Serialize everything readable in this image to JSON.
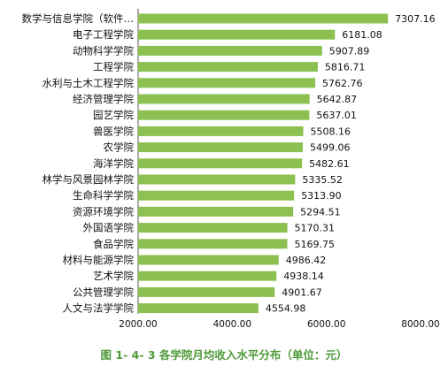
{
  "caption": "图 1- 4- 3 各学院月均收入水平分布（单位：元）",
  "colors": {
    "bar": "#8cc152",
    "text": "#111111",
    "caption": "#4f9a3a",
    "axis": "#555555"
  },
  "chart_data": {
    "type": "bar",
    "orientation": "horizontal",
    "title": "",
    "xlabel": "",
    "ylabel": "",
    "xlim": [
      2000,
      8000
    ],
    "xticks": [
      "2000.00",
      "4000.00",
      "6000.00",
      "8000.00"
    ],
    "grid": false,
    "legend": "none",
    "categories": [
      "数学与信息学院（软件…",
      "电子工程学院",
      "动物科学学院",
      "工程学院",
      "水利与土木工程学院",
      "经济管理学院",
      "园艺学院",
      "兽医学院",
      "农学院",
      "海洋学院",
      "林学与风景园林学院",
      "生命科学学院",
      "资源环境学院",
      "外国语学院",
      "食品学院",
      "材料与能源学院",
      "艺术学院",
      "公共管理学院",
      "人文与法学学院"
    ],
    "values": [
      7307.16,
      6181.08,
      5907.89,
      5816.71,
      5762.76,
      5642.87,
      5637.01,
      5508.16,
      5499.06,
      5482.61,
      5335.52,
      5313.9,
      5294.51,
      5170.31,
      5169.75,
      4986.42,
      4938.14,
      4901.67,
      4554.98
    ],
    "value_labels": [
      "7307.16",
      "6181.08",
      "5907.89",
      "5816.71",
      "5762.76",
      "5642.87",
      "5637.01",
      "5508.16",
      "5499.06",
      "5482.61",
      "5335.52",
      "5313.90",
      "5294.51",
      "5170.31",
      "5169.75",
      "4986.42",
      "4938.14",
      "4901.67",
      "4554.98"
    ]
  }
}
